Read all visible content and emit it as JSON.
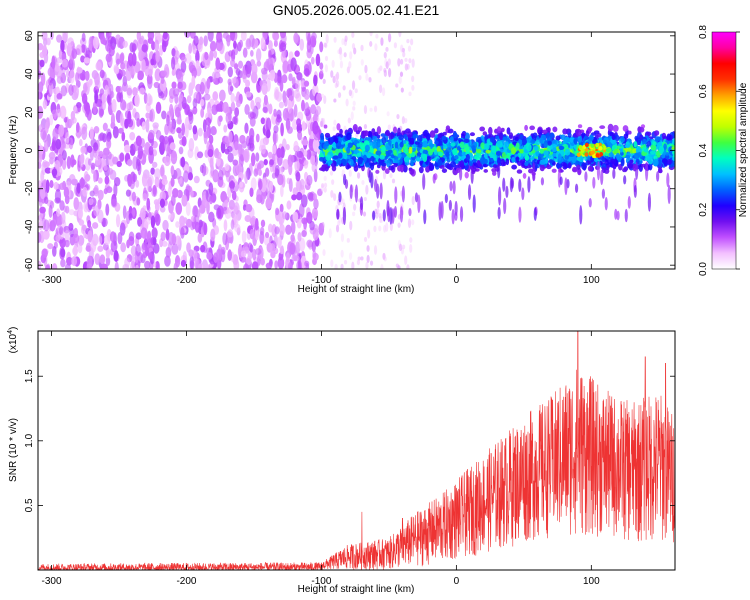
{
  "chart_data": [
    {
      "type": "heatmap",
      "title": "GN05.2026.005.02.41.E21",
      "xlabel": "Height of straight line (km)",
      "ylabel": "Frequency (Hz)",
      "xlim": [
        -310,
        162
      ],
      "ylim": [
        -62,
        62
      ],
      "x_ticks": [
        -300,
        -200,
        -100,
        0,
        100
      ],
      "y_ticks": [
        -60,
        -40,
        -20,
        0,
        20,
        40,
        60
      ],
      "colorbar": {
        "label": "Normalized spectral amplitude",
        "range": [
          0.0,
          0.8
        ],
        "ticks": [
          "0.0",
          "0.2",
          "0.4",
          "0.6",
          "0.8"
        ],
        "colors": [
          "#ffffff",
          "#f3c0ff",
          "#c050ff",
          "#7010f0",
          "#2000ff",
          "#0060ff",
          "#00c0ff",
          "#00ffc0",
          "#40ff40",
          "#c0ff00",
          "#ffff00",
          "#ffa000",
          "#ff3000",
          "#ff0000",
          "#ff00a0",
          "#ff00ff"
        ]
      },
      "regions": [
        {
          "x_range": [
            -310,
            -100
          ],
          "description": "broadband noise",
          "freq_range": [
            -62,
            62
          ],
          "amplitude": [
            0.05,
            0.12
          ]
        },
        {
          "x_range": [
            -100,
            162
          ],
          "description": "signal band",
          "freq_range": [
            -12,
            12
          ],
          "amplitude": [
            0.15,
            0.45
          ]
        },
        {
          "x_range": [
            90,
            110
          ],
          "description": "peak",
          "freq_center": 0,
          "amplitude": 0.65
        }
      ]
    },
    {
      "type": "line",
      "xlabel": "Height of straight line (km)",
      "ylabel": "SNR (10 * v/v)",
      "scale_label": "(x10",
      "scale_exp": "4",
      "scale_close": ")",
      "xlim": [
        -310,
        162
      ],
      "ylim": [
        0,
        1.85
      ],
      "x_ticks": [
        -300,
        -200,
        -100,
        0,
        100
      ],
      "y_ticks": [
        "0.5",
        "1.0",
        "1.5"
      ],
      "color": "#ee3333",
      "envelope": [
        {
          "x": -310,
          "low": 0.0,
          "high": 0.05
        },
        {
          "x": -100,
          "low": 0.0,
          "high": 0.06
        },
        {
          "x": -80,
          "low": 0.0,
          "high": 0.2
        },
        {
          "x": -50,
          "low": 0.0,
          "high": 0.25
        },
        {
          "x": -30,
          "low": 0.02,
          "high": 0.45
        },
        {
          "x": -10,
          "low": 0.05,
          "high": 0.6
        },
        {
          "x": 10,
          "low": 0.1,
          "high": 0.8
        },
        {
          "x": 30,
          "low": 0.15,
          "high": 1.0
        },
        {
          "x": 50,
          "low": 0.2,
          "high": 1.2
        },
        {
          "x": 70,
          "low": 0.25,
          "high": 1.35
        },
        {
          "x": 90,
          "low": 0.25,
          "high": 1.6
        },
        {
          "x": 110,
          "low": 0.25,
          "high": 1.4
        },
        {
          "x": 130,
          "low": 0.2,
          "high": 1.3
        },
        {
          "x": 150,
          "low": 0.2,
          "high": 1.4
        },
        {
          "x": 162,
          "low": 0.2,
          "high": 1.2
        }
      ],
      "peaks": [
        {
          "x": -70,
          "y": 0.45
        },
        {
          "x": -40,
          "y": 0.4
        },
        {
          "x": 90,
          "y": 1.85
        },
        {
          "x": 140,
          "y": 1.65
        },
        {
          "x": 155,
          "y": 1.6
        }
      ]
    }
  ]
}
